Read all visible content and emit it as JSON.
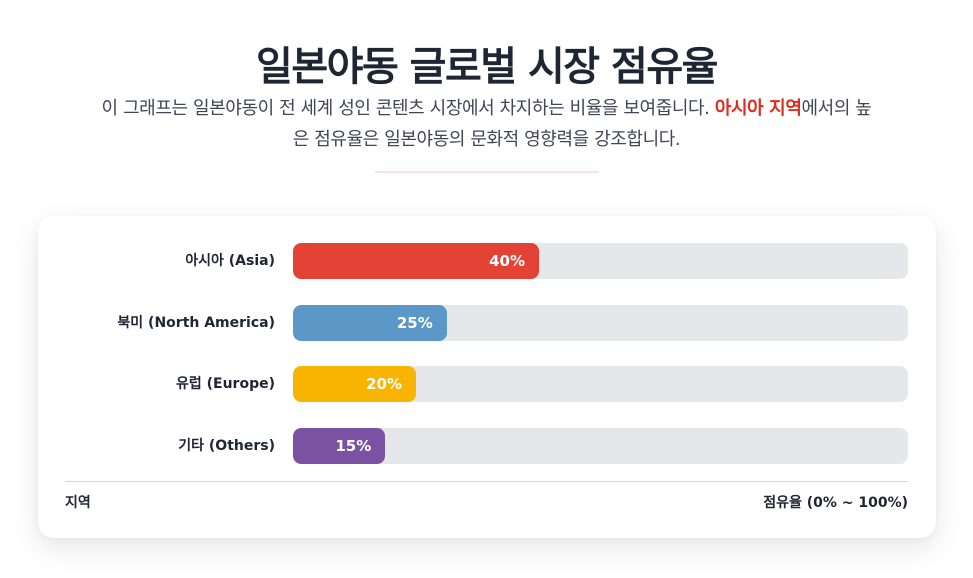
{
  "header": {
    "title": "일본야동 글로벌 시장 점유율",
    "description_part1": "이 그래프는 일본야동이 전 세계 성인 콘텐츠 시장에서 차지하는 비율을 보여줍니다. ",
    "description_highlight": "아시아 지역",
    "description_part2": "에서의 높은 점유율은 일본야동의 문화적 영향력을 강조합니다."
  },
  "colors": {
    "accent": "#e02b20",
    "track": "#e5e7eb",
    "title": "#1e2533"
  },
  "chart_data": {
    "type": "bar",
    "orientation": "horizontal",
    "title": "일본야동 글로벌 시장 점유율",
    "categories": [
      "아시아 (Asia)",
      "북미 (North America)",
      "유럽 (Europe)",
      "기타 (Others)"
    ],
    "values": [
      40,
      25,
      20,
      15
    ],
    "value_labels": [
      "40%",
      "25%",
      "20%",
      "15%"
    ],
    "colors": [
      "#e44235",
      "#5b97c7",
      "#f8b400",
      "#7b52a3"
    ],
    "xlabel": "지역",
    "ylabel": "점유율 (0% ~ 100%)",
    "xlim": [
      0,
      100
    ],
    "grid": false,
    "legend": "none"
  },
  "axis": {
    "category_title": "지역",
    "value_title": "점유율 (0% ~ 100%)"
  }
}
